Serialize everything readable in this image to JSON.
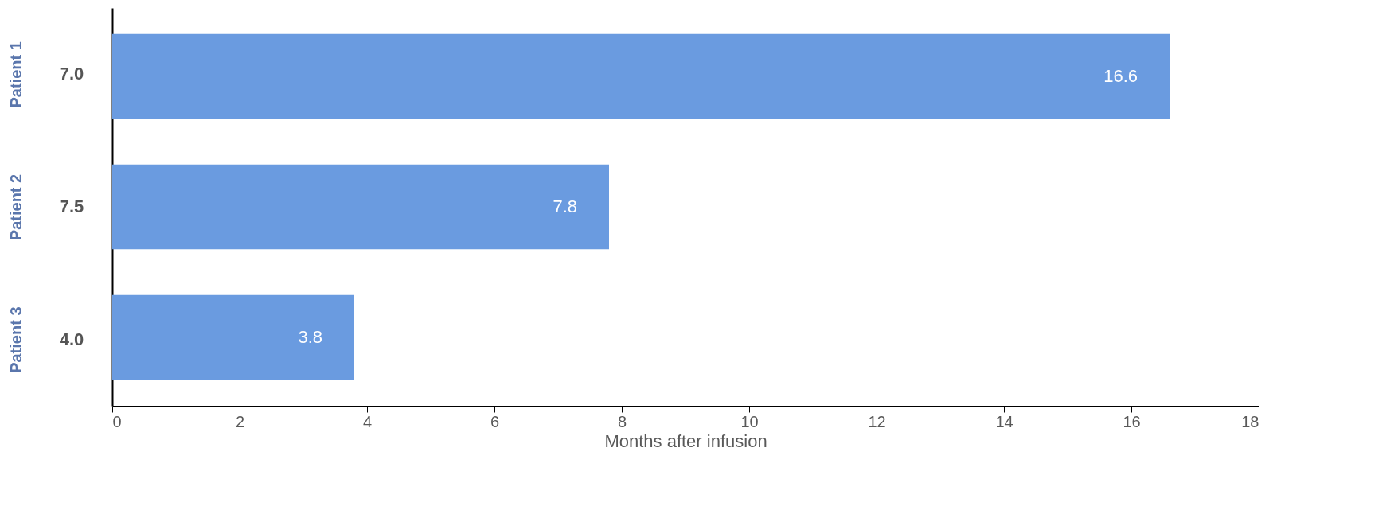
{
  "chart_data": {
    "type": "bar",
    "orientation": "horizontal",
    "categories": [
      "Patient 1",
      "Patient 2",
      "Patient 3"
    ],
    "values": [
      16.6,
      7.8,
      3.8
    ],
    "color": "#6a9be0",
    "data_labels": true,
    "xlim": [
      0,
      18
    ],
    "xticks": [
      0,
      2,
      4,
      6,
      8,
      10,
      12,
      14,
      16,
      18
    ],
    "xlabel": "Months after infusion",
    "grid": false,
    "annotations": [
      "7.0",
      "7.5",
      "4.0"
    ]
  }
}
